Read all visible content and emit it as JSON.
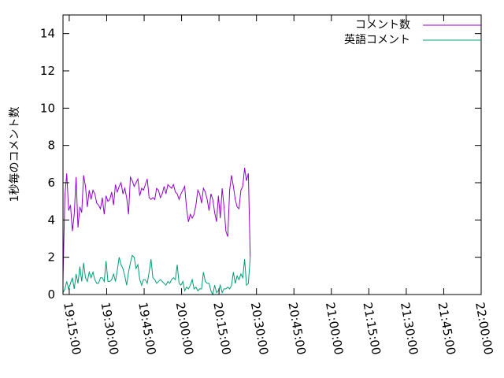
{
  "chart_data": {
    "type": "line",
    "ylabel": "1秒毎のコメント数",
    "xlabel": "",
    "title": "",
    "x_range": [
      "19:12:30",
      "22:00:00"
    ],
    "ylim": [
      0,
      15
    ],
    "y_ticks": [
      0,
      2,
      4,
      6,
      8,
      10,
      12,
      14
    ],
    "x_ticks": [
      "19:15:00",
      "19:30:00",
      "19:45:00",
      "20:00:00",
      "20:15:00",
      "20:30:00",
      "20:45:00",
      "21:00:00",
      "21:15:00",
      "21:30:00",
      "21:45:00",
      "22:00:00"
    ],
    "grid": false,
    "legend_position": "top-right",
    "series": [
      {
        "name": "コメント数",
        "color": "#9400d3",
        "points": [
          [
            "19:12:30",
            0.8
          ],
          [
            "19:13:15",
            5.3
          ],
          [
            "19:14:00",
            6.5
          ],
          [
            "19:14:45",
            4.5
          ],
          [
            "19:15:30",
            4.8
          ],
          [
            "19:16:15",
            3.4
          ],
          [
            "19:17:00",
            4.3
          ],
          [
            "19:17:45",
            6.3
          ],
          [
            "19:18:30",
            3.6
          ],
          [
            "19:19:15",
            4.7
          ],
          [
            "19:20:00",
            4.4
          ],
          [
            "19:20:45",
            6.4
          ],
          [
            "19:21:30",
            5.8
          ],
          [
            "19:22:15",
            4.7
          ],
          [
            "19:23:00",
            5.6
          ],
          [
            "19:23:45",
            5.1
          ],
          [
            "19:24:30",
            5.6
          ],
          [
            "19:25:15",
            5.4
          ],
          [
            "19:26:00",
            4.9
          ],
          [
            "19:26:45",
            4.8
          ],
          [
            "19:27:30",
            4.6
          ],
          [
            "19:28:15",
            5.2
          ],
          [
            "19:29:00",
            4.3
          ],
          [
            "19:29:45",
            5.3
          ],
          [
            "19:30:30",
            5.0
          ],
          [
            "19:31:15",
            5.1
          ],
          [
            "19:32:00",
            5.5
          ],
          [
            "19:32:45",
            4.8
          ],
          [
            "19:33:30",
            5.9
          ],
          [
            "19:34:15",
            5.5
          ],
          [
            "19:35:00",
            5.8
          ],
          [
            "19:35:45",
            6.0
          ],
          [
            "19:36:30",
            5.4
          ],
          [
            "19:37:15",
            5.7
          ],
          [
            "19:38:00",
            5.2
          ],
          [
            "19:38:45",
            4.3
          ],
          [
            "19:39:30",
            6.3
          ],
          [
            "19:40:15",
            6.1
          ],
          [
            "19:41:00",
            5.8
          ],
          [
            "19:41:45",
            6.0
          ],
          [
            "19:42:30",
            6.2
          ],
          [
            "19:43:15",
            5.3
          ],
          [
            "19:44:00",
            5.7
          ],
          [
            "19:44:45",
            5.6
          ],
          [
            "19:45:30",
            5.9
          ],
          [
            "19:46:15",
            6.2
          ],
          [
            "19:47:00",
            5.2
          ],
          [
            "19:47:45",
            5.1
          ],
          [
            "19:48:30",
            5.2
          ],
          [
            "19:49:15",
            5.1
          ],
          [
            "19:50:00",
            5.7
          ],
          [
            "19:50:45",
            5.6
          ],
          [
            "19:51:30",
            5.2
          ],
          [
            "19:52:15",
            5.4
          ],
          [
            "19:53:00",
            5.8
          ],
          [
            "19:53:45",
            5.4
          ],
          [
            "19:54:30",
            5.9
          ],
          [
            "19:55:15",
            5.8
          ],
          [
            "19:56:00",
            5.7
          ],
          [
            "19:56:45",
            5.9
          ],
          [
            "19:57:30",
            5.5
          ],
          [
            "19:58:15",
            5.4
          ],
          [
            "19:59:00",
            5.1
          ],
          [
            "19:59:45",
            5.4
          ],
          [
            "20:00:30",
            5.6
          ],
          [
            "20:01:15",
            5.8
          ],
          [
            "20:02:00",
            4.6
          ],
          [
            "20:02:45",
            3.9
          ],
          [
            "20:03:30",
            4.3
          ],
          [
            "20:04:15",
            4.1
          ],
          [
            "20:05:00",
            4.3
          ],
          [
            "20:05:45",
            4.8
          ],
          [
            "20:06:30",
            5.6
          ],
          [
            "20:07:15",
            5.4
          ],
          [
            "20:08:00",
            4.9
          ],
          [
            "20:08:45",
            5.7
          ],
          [
            "20:09:30",
            5.5
          ],
          [
            "20:10:15",
            5.1
          ],
          [
            "20:11:00",
            4.5
          ],
          [
            "20:11:45",
            5.4
          ],
          [
            "20:12:30",
            5.1
          ],
          [
            "20:13:15",
            4.4
          ],
          [
            "20:14:00",
            3.9
          ],
          [
            "20:14:45",
            5.3
          ],
          [
            "20:15:30",
            4.1
          ],
          [
            "20:16:15",
            5.7
          ],
          [
            "20:17:00",
            4.7
          ],
          [
            "20:17:45",
            3.4
          ],
          [
            "20:18:30",
            3.1
          ],
          [
            "20:19:15",
            5.6
          ],
          [
            "20:20:00",
            6.4
          ],
          [
            "20:20:45",
            5.8
          ],
          [
            "20:21:30",
            5.1
          ],
          [
            "20:22:15",
            4.7
          ],
          [
            "20:23:00",
            4.6
          ],
          [
            "20:23:45",
            5.6
          ],
          [
            "20:24:30",
            5.8
          ],
          [
            "20:25:15",
            6.8
          ],
          [
            "20:26:00",
            6.1
          ],
          [
            "20:26:45",
            6.5
          ],
          [
            "20:27:30",
            2.0
          ]
        ]
      },
      {
        "name": "英語コメント",
        "color": "#009e73",
        "points": [
          [
            "19:12:30",
            0.1
          ],
          [
            "19:13:15",
            0.3
          ],
          [
            "19:14:00",
            0.7
          ],
          [
            "19:14:45",
            0.3
          ],
          [
            "19:15:30",
            0.6
          ],
          [
            "19:16:15",
            0.9
          ],
          [
            "19:17:00",
            0.3
          ],
          [
            "19:17:45",
            1.1
          ],
          [
            "19:18:30",
            0.6
          ],
          [
            "19:19:15",
            1.5
          ],
          [
            "19:20:00",
            0.7
          ],
          [
            "19:20:45",
            1.7
          ],
          [
            "19:21:30",
            0.9
          ],
          [
            "19:22:15",
            0.7
          ],
          [
            "19:23:00",
            1.2
          ],
          [
            "19:23:45",
            0.9
          ],
          [
            "19:24:30",
            1.2
          ],
          [
            "19:25:15",
            0.8
          ],
          [
            "19:26:00",
            0.6
          ],
          [
            "19:26:45",
            0.6
          ],
          [
            "19:27:30",
            0.9
          ],
          [
            "19:28:15",
            0.9
          ],
          [
            "19:29:00",
            0.7
          ],
          [
            "19:29:45",
            1.8
          ],
          [
            "19:30:30",
            0.7
          ],
          [
            "19:31:15",
            0.7
          ],
          [
            "19:32:00",
            0.8
          ],
          [
            "19:32:45",
            1.1
          ],
          [
            "19:33:30",
            0.7
          ],
          [
            "19:34:15",
            1.3
          ],
          [
            "19:35:00",
            2.0
          ],
          [
            "19:35:45",
            1.6
          ],
          [
            "19:36:30",
            1.4
          ],
          [
            "19:37:15",
            1.0
          ],
          [
            "19:38:00",
            0.5
          ],
          [
            "19:38:45",
            1.2
          ],
          [
            "19:39:30",
            1.7
          ],
          [
            "19:40:15",
            2.1
          ],
          [
            "19:41:00",
            2.0
          ],
          [
            "19:41:45",
            1.4
          ],
          [
            "19:42:30",
            1.6
          ],
          [
            "19:43:15",
            0.8
          ],
          [
            "19:44:00",
            0.5
          ],
          [
            "19:44:45",
            0.8
          ],
          [
            "19:45:30",
            0.8
          ],
          [
            "19:46:15",
            0.6
          ],
          [
            "19:47:00",
            1.2
          ],
          [
            "19:47:45",
            1.9
          ],
          [
            "19:48:30",
            0.9
          ],
          [
            "19:49:15",
            0.8
          ],
          [
            "19:50:00",
            0.6
          ],
          [
            "19:50:45",
            0.7
          ],
          [
            "19:51:30",
            0.8
          ],
          [
            "19:52:15",
            0.7
          ],
          [
            "19:53:00",
            0.6
          ],
          [
            "19:53:45",
            0.5
          ],
          [
            "19:54:30",
            0.7
          ],
          [
            "19:55:15",
            0.6
          ],
          [
            "19:56:00",
            0.8
          ],
          [
            "19:56:45",
            0.9
          ],
          [
            "19:57:30",
            0.8
          ],
          [
            "19:58:15",
            1.6
          ],
          [
            "19:59:00",
            0.6
          ],
          [
            "19:59:45",
            0.5
          ],
          [
            "20:00:30",
            0.7
          ],
          [
            "20:01:15",
            0.2
          ],
          [
            "20:02:00",
            0.4
          ],
          [
            "20:02:45",
            0.3
          ],
          [
            "20:03:30",
            0.5
          ],
          [
            "20:04:15",
            0.8
          ],
          [
            "20:05:00",
            0.3
          ],
          [
            "20:05:45",
            0.4
          ],
          [
            "20:06:30",
            0.2
          ],
          [
            "20:07:15",
            0.3
          ],
          [
            "20:08:00",
            0.3
          ],
          [
            "20:08:45",
            1.2
          ],
          [
            "20:09:30",
            0.7
          ],
          [
            "20:10:15",
            0.6
          ],
          [
            "20:11:00",
            0.6
          ],
          [
            "20:11:45",
            0.2
          ],
          [
            "20:12:30",
            0.0
          ],
          [
            "20:13:15",
            0.5
          ],
          [
            "20:14:00",
            0.1
          ],
          [
            "20:14:45",
            0.2
          ],
          [
            "20:15:30",
            0.5
          ],
          [
            "20:16:15",
            0.1
          ],
          [
            "20:17:00",
            0.3
          ],
          [
            "20:17:45",
            0.3
          ],
          [
            "20:18:30",
            0.4
          ],
          [
            "20:19:15",
            0.3
          ],
          [
            "20:20:00",
            0.5
          ],
          [
            "20:20:45",
            1.2
          ],
          [
            "20:21:30",
            0.6
          ],
          [
            "20:22:15",
            1.0
          ],
          [
            "20:23:00",
            0.8
          ],
          [
            "20:23:45",
            1.1
          ],
          [
            "20:24:30",
            0.9
          ],
          [
            "20:25:15",
            1.9
          ],
          [
            "20:26:00",
            0.5
          ],
          [
            "20:26:45",
            0.6
          ],
          [
            "20:27:30",
            2.0
          ]
        ]
      }
    ]
  }
}
